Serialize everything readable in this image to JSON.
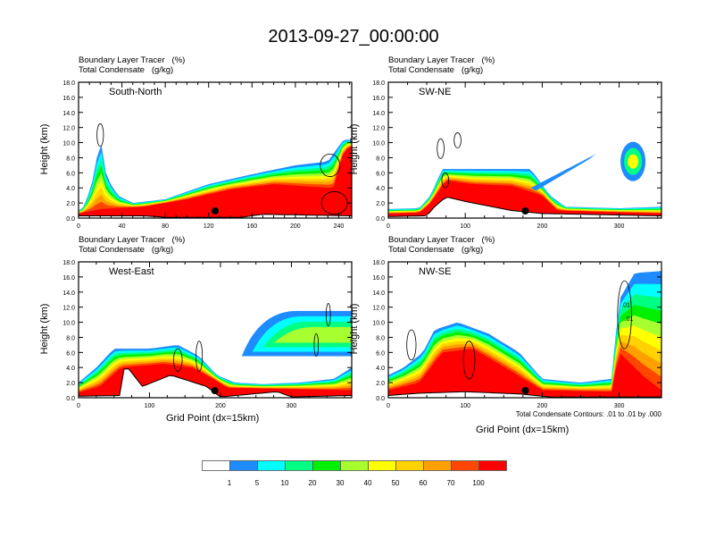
{
  "title": "2013-09-27_00:00:00",
  "chart_data": {
    "type": "heatmap",
    "title": "2013-09-27_00:00:00",
    "legend": {
      "placement": "bottom",
      "levels": [
        "1",
        "5",
        "10",
        "20",
        "30",
        "40",
        "50",
        "60",
        "70",
        "100"
      ],
      "colors": [
        "#ffffff",
        "#1e8cff",
        "#00ffff",
        "#00ff82",
        "#00f000",
        "#a8ff30",
        "#ffff00",
        "#ffd200",
        "#ffa000",
        "#ff4600",
        "#ff0000"
      ]
    },
    "panels": [
      {
        "id": "south-north",
        "label": "South-North",
        "header": [
          "Boundary Layer Tracer   (%)",
          "Total Condensate   (g/kg)"
        ],
        "ylabel": "Height (km)",
        "xlabel": "",
        "xlim": [
          0,
          252
        ],
        "xticks": [
          0,
          40,
          80,
          120,
          160,
          200,
          240
        ],
        "ylim": [
          0,
          18
        ],
        "yticks": [
          "0.0",
          "2.0",
          "4.0",
          "6.0",
          "8.0",
          "10.0",
          "12.0",
          "14.0",
          "16.0",
          "18.0"
        ],
        "marker_x": 126,
        "tracer_top_km": [
          [
            0,
            1
          ],
          [
            5,
            1.5
          ],
          [
            10,
            3.5
          ],
          [
            14,
            5.5
          ],
          [
            18,
            9
          ],
          [
            22,
            10
          ],
          [
            26,
            5
          ],
          [
            30,
            4.5
          ],
          [
            36,
            3
          ],
          [
            50,
            2
          ],
          [
            80,
            2.5
          ],
          [
            120,
            4.5
          ],
          [
            160,
            5.8
          ],
          [
            200,
            7
          ],
          [
            230,
            7.5
          ],
          [
            245,
            10.5
          ],
          [
            252,
            10.3
          ]
        ],
        "core_top_km": [
          [
            0,
            0.6
          ],
          [
            20,
            1.2
          ],
          [
            60,
            1.5
          ],
          [
            100,
            2.5
          ],
          [
            140,
            3.8
          ],
          [
            180,
            4.5
          ],
          [
            210,
            4.2
          ],
          [
            235,
            4
          ],
          [
            245,
            9
          ],
          [
            252,
            9.5
          ]
        ],
        "terrain_km": [
          [
            0,
            0.3
          ],
          [
            60,
            0.3
          ],
          [
            80,
            0.1
          ],
          [
            150,
            0.1
          ],
          [
            170,
            0.5
          ],
          [
            252,
            0.3
          ]
        ],
        "contours": [
          {
            "x": 20,
            "y": 11,
            "rx": 2,
            "ry": 1.5
          },
          {
            "x": 232,
            "y": 7,
            "rx": 6,
            "ry": 1.5
          },
          {
            "x": 236,
            "y": 2,
            "rx": 8,
            "ry": 1.5
          }
        ]
      },
      {
        "id": "sw-ne",
        "label": "SW-NE",
        "header": [
          "Boundary Layer Tracer   (%)",
          "Total Condensate   (g/kg)"
        ],
        "ylabel": "Height (km)",
        "xlabel": "",
        "xlim": [
          0,
          355
        ],
        "xticks": [
          0,
          100,
          200,
          300
        ],
        "ylim": [
          0,
          18
        ],
        "yticks": [
          "0.0",
          "2.0",
          "4.0",
          "6.0",
          "8.0",
          "10.0",
          "12.0",
          "14.0",
          "16.0",
          "18.0"
        ],
        "marker_x": 178,
        "tracer_top_km": [
          [
            0,
            1.2
          ],
          [
            40,
            1.3
          ],
          [
            55,
            3
          ],
          [
            70,
            6.5
          ],
          [
            90,
            6.5
          ],
          [
            140,
            6.5
          ],
          [
            185,
            6.5
          ],
          [
            210,
            3
          ],
          [
            230,
            1.5
          ],
          [
            300,
            1.3
          ],
          [
            355,
            1.5
          ]
        ],
        "core_top_km": [
          [
            0,
            0.6
          ],
          [
            40,
            0.7
          ],
          [
            55,
            2
          ],
          [
            75,
            5
          ],
          [
            110,
            4.5
          ],
          [
            160,
            4.3
          ],
          [
            200,
            3
          ],
          [
            220,
            1
          ],
          [
            355,
            0.6
          ]
        ],
        "terrain_km": [
          [
            0,
            0.2
          ],
          [
            50,
            0.3
          ],
          [
            60,
            1.5
          ],
          [
            75,
            2.8
          ],
          [
            100,
            2.2
          ],
          [
            160,
            1
          ],
          [
            200,
            0.6
          ],
          [
            355,
            0.3
          ]
        ],
        "contours": [
          {
            "x": 68,
            "y": 9.2,
            "rx": 3,
            "ry": 1.3
          },
          {
            "x": 90,
            "y": 10.3,
            "rx": 3,
            "ry": 1
          },
          {
            "x": 74,
            "y": 5,
            "rx": 3,
            "ry": 1
          }
        ],
        "features": [
          {
            "type": "cloud",
            "x": 318,
            "y": 7.5,
            "levels": [
              "#1e8cff",
              "#00ff82",
              "#ffff00"
            ]
          },
          {
            "type": "plume",
            "from": [
              185,
              4
            ],
            "to": [
              270,
              8.5
            ]
          }
        ]
      },
      {
        "id": "west-east",
        "label": "West-East",
        "header": [
          "Boundary Layer Tracer   (%)",
          "Total Condensate   (g/kg)"
        ],
        "ylabel": "Height (km)",
        "xlabel": "Grid Point (dx=15km)",
        "xlim": [
          0,
          385
        ],
        "xticks": [
          0,
          100,
          200,
          300
        ],
        "ylim": [
          0,
          18
        ],
        "yticks": [
          "0.0",
          "2.0",
          "4.0",
          "6.0",
          "8.0",
          "10.0",
          "12.0",
          "14.0",
          "16.0",
          "18.0"
        ],
        "marker_x": 192,
        "tracer_top_km": [
          [
            0,
            2
          ],
          [
            25,
            4
          ],
          [
            50,
            6.5
          ],
          [
            100,
            6.5
          ],
          [
            140,
            7
          ],
          [
            170,
            5.5
          ],
          [
            195,
            3
          ],
          [
            220,
            2
          ],
          [
            260,
            1.8
          ],
          [
            310,
            2
          ],
          [
            360,
            2.5
          ],
          [
            385,
            4
          ]
        ],
        "core_top_km": [
          [
            0,
            0.7
          ],
          [
            30,
            1.5
          ],
          [
            60,
            4
          ],
          [
            120,
            4.5
          ],
          [
            160,
            4
          ],
          [
            190,
            2.5
          ],
          [
            210,
            1.3
          ],
          [
            385,
            1
          ]
        ],
        "terrain_km": [
          [
            0,
            0.2
          ],
          [
            60,
            0.3
          ],
          [
            65,
            4.5
          ],
          [
            90,
            1.5
          ],
          [
            130,
            3
          ],
          [
            180,
            1.5
          ],
          [
            200,
            0.1
          ],
          [
            280,
            0.8
          ],
          [
            300,
            0.1
          ],
          [
            385,
            0.3
          ]
        ],
        "contours": [
          {
            "x": 140,
            "y": 5,
            "rx": 4,
            "ry": 1.5
          },
          {
            "x": 170,
            "y": 5.5,
            "rx": 3,
            "ry": 2
          },
          {
            "x": 335,
            "y": 7,
            "rx": 2,
            "ry": 1.5
          },
          {
            "x": 352,
            "y": 11,
            "rx": 2,
            "ry": 1.5
          }
        ],
        "features": [
          {
            "type": "cloud-band",
            "from": [
              230,
              5.5
            ],
            "to": [
              385,
              11.5
            ],
            "levels": [
              "#1e8cff",
              "#00ffff",
              "#00ff82",
              "#a8ff30"
            ]
          }
        ]
      },
      {
        "id": "nw-se",
        "label": "NW-SE",
        "header": [
          "Boundary Layer Tracer   (%)",
          "Total Condensate   (g/kg)"
        ],
        "ylabel": "Height (km)",
        "xlabel": "Grid Point (dx=15km)",
        "note": "Total Condensate Contours: .01 to .01 by .000",
        "xlim": [
          0,
          355
        ],
        "xticks": [
          0,
          100,
          200,
          300
        ],
        "ylim": [
          0,
          18
        ],
        "yticks": [
          "0.0",
          "2.0",
          "4.0",
          "6.0",
          "8.0",
          "10.0",
          "12.0",
          "14.0",
          "16.0",
          "18.0"
        ],
        "marker_x": 178,
        "contour_labels": [
          ".01",
          ".01"
        ],
        "tracer_top_km": [
          [
            0,
            3
          ],
          [
            20,
            4
          ],
          [
            45,
            6
          ],
          [
            60,
            9
          ],
          [
            90,
            10
          ],
          [
            130,
            8.5
          ],
          [
            170,
            6
          ],
          [
            200,
            2.5
          ],
          [
            250,
            2
          ],
          [
            290,
            2.5
          ],
          [
            300,
            13
          ],
          [
            320,
            16.5
          ],
          [
            355,
            16.8
          ]
        ],
        "core_top_km": [
          [
            0,
            1
          ],
          [
            40,
            2
          ],
          [
            70,
            6
          ],
          [
            110,
            6.5
          ],
          [
            160,
            3.5
          ],
          [
            200,
            1
          ],
          [
            290,
            0.8
          ],
          [
            300,
            6
          ],
          [
            330,
            3
          ],
          [
            355,
            1
          ]
        ],
        "terrain_km": [
          [
            0,
            0.3
          ],
          [
            40,
            0.6
          ],
          [
            100,
            0.8
          ],
          [
            170,
            0.5
          ],
          [
            210,
            0.1
          ],
          [
            355,
            0.1
          ]
        ],
        "contours": [
          {
            "x": 30,
            "y": 7,
            "rx": 4,
            "ry": 2
          },
          {
            "x": 105,
            "y": 5,
            "rx": 5,
            "ry": 2.5
          },
          {
            "x": 307,
            "y": 11,
            "rx": 6,
            "ry": 4.5
          }
        ]
      }
    ]
  }
}
